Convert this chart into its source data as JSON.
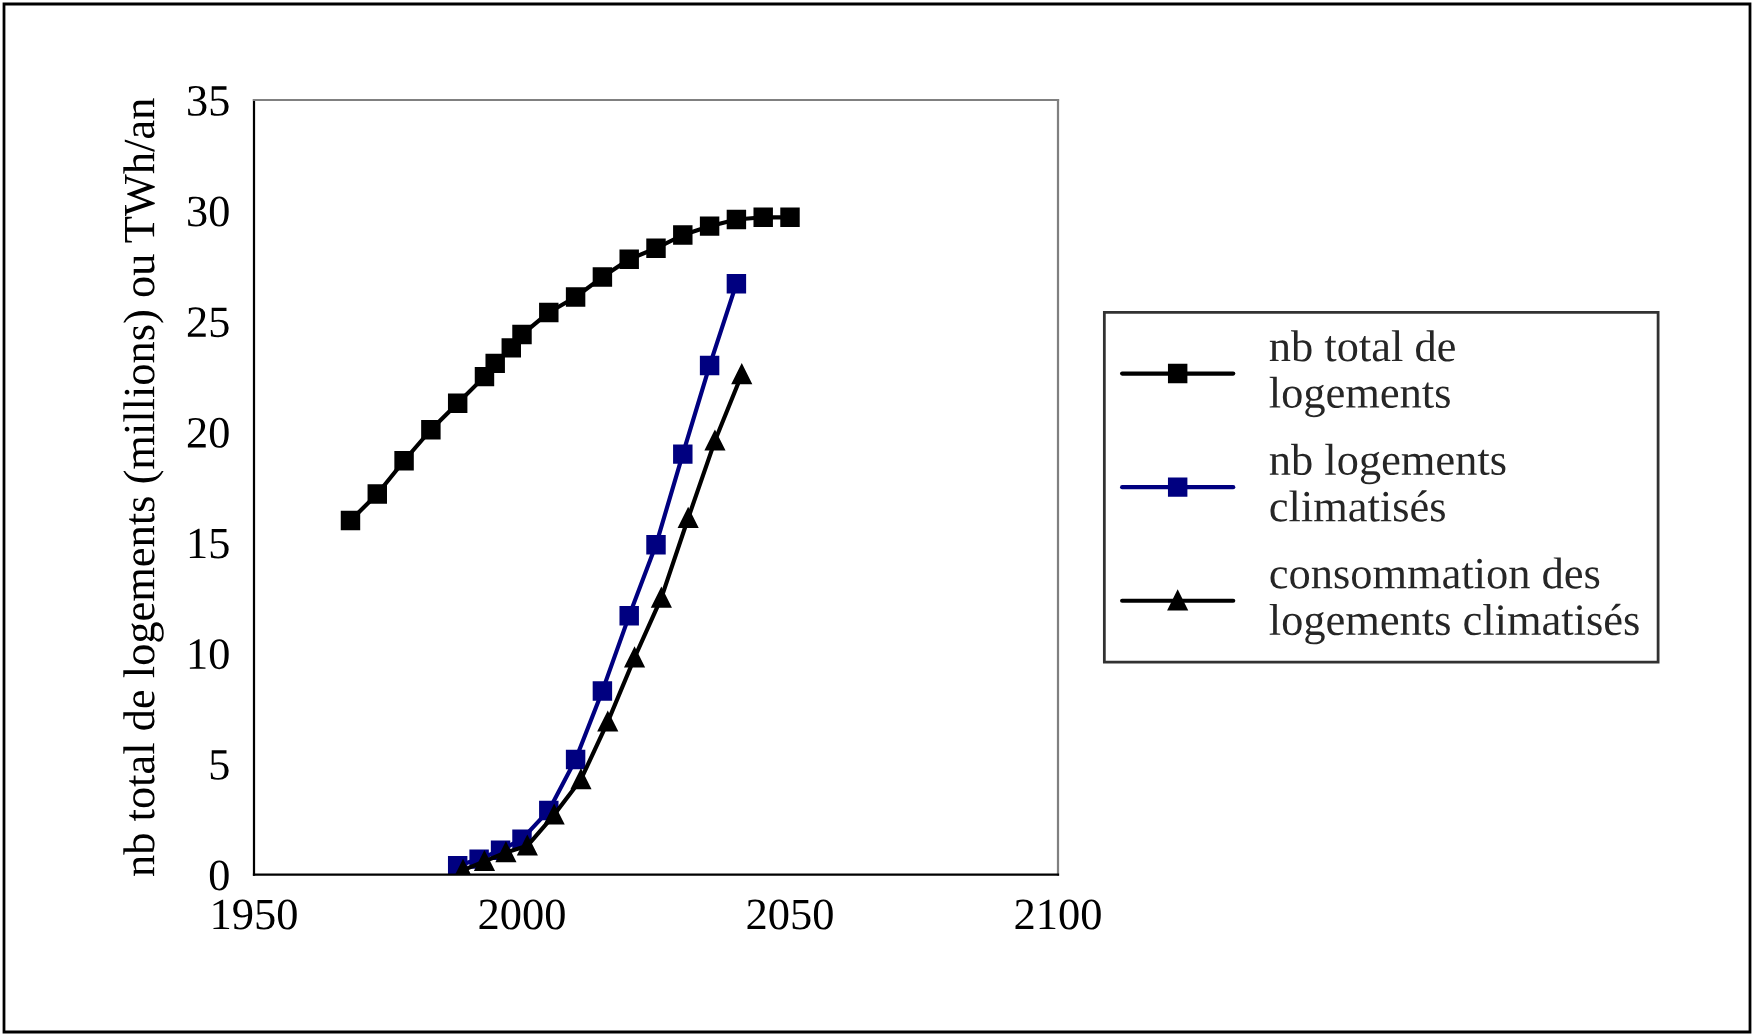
{
  "chart_data": {
    "type": "line",
    "ylabel": "nb total de logements (millions) ou TWh/an",
    "xlim": [
      1950,
      2100
    ],
    "xticks": [
      1950,
      2000,
      2050,
      2100
    ],
    "ylim": [
      0,
      35
    ],
    "yticks": [
      0,
      5,
      10,
      15,
      20,
      25,
      30,
      35
    ],
    "grid": false,
    "legend": "right",
    "series": [
      {
        "name": "nb total de\nlogements",
        "color": "#000000",
        "marker": "square",
        "x": [
          1968,
          1973,
          1978,
          1983,
          1988,
          1993,
          1995,
          1998,
          2000,
          2005,
          2010,
          2015,
          2020,
          2025,
          2030,
          2035,
          2040,
          2045,
          2050
        ],
        "values": [
          16.0,
          17.2,
          18.7,
          20.1,
          21.3,
          22.5,
          23.1,
          23.8,
          24.4,
          25.4,
          26.1,
          27.0,
          27.8,
          28.3,
          28.9,
          29.3,
          29.6,
          29.7,
          29.7
        ]
      },
      {
        "name": "nb logements\nclimatisés",
        "color": "#000080",
        "marker": "square",
        "x": [
          1988,
          1992,
          1996,
          2000,
          2005,
          2010,
          2015,
          2020,
          2025,
          2030,
          2035,
          2040
        ],
        "values": [
          0.4,
          0.7,
          1.1,
          1.6,
          2.9,
          5.2,
          8.3,
          11.7,
          14.9,
          19.0,
          23.0,
          26.7
        ]
      },
      {
        "name": "consommation des\nlogements climatisés",
        "color": "#000000",
        "marker": "triangle",
        "x": [
          1989,
          1993,
          1997,
          2001,
          2006,
          2011,
          2016,
          2021,
          2026,
          2031,
          2036,
          2041
        ],
        "values": [
          0.2,
          0.6,
          1.0,
          1.3,
          2.7,
          4.3,
          6.9,
          9.8,
          12.5,
          16.1,
          19.6,
          22.6
        ]
      }
    ]
  }
}
